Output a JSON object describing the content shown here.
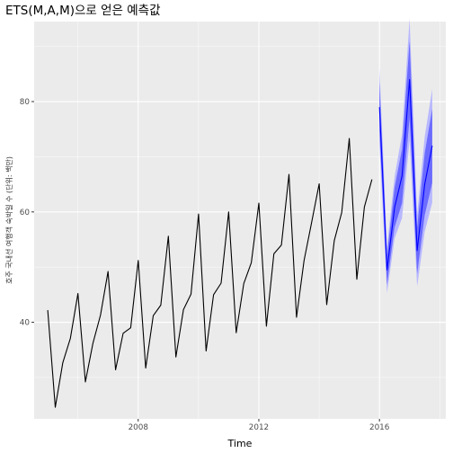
{
  "chart_data": {
    "type": "line",
    "title": "ETS(M,A,M)으로 얻은 예측값",
    "xlabel": "Time",
    "ylabel": "호주 국내선 여행객 숙박일 수 (단위: 백만)",
    "xlim": [
      2004.55,
      2018.2
    ],
    "ylim": [
      22.5,
      94.5
    ],
    "x_ticks": [
      2008,
      2012,
      2016
    ],
    "y_ticks": [
      40,
      60,
      80
    ],
    "grid": true,
    "background": "#ebebeb",
    "series": [
      {
        "role": "observed",
        "color": "#000000",
        "x": [
          2005.0,
          2005.25,
          2005.5,
          2005.75,
          2006.0,
          2006.25,
          2006.5,
          2006.75,
          2007.0,
          2007.25,
          2007.5,
          2007.75,
          2008.0,
          2008.25,
          2008.5,
          2008.75,
          2009.0,
          2009.25,
          2009.5,
          2009.75,
          2010.0,
          2010.25,
          2010.5,
          2010.75,
          2011.0,
          2011.25,
          2011.5,
          2011.75,
          2012.0,
          2012.25,
          2012.5,
          2012.75,
          2013.0,
          2013.25,
          2013.5,
          2013.75,
          2014.0,
          2014.25,
          2014.5,
          2014.75,
          2015.0,
          2015.25,
          2015.5,
          2015.75
        ],
        "y": [
          42.2,
          24.6,
          32.7,
          37.1,
          45.2,
          29.2,
          36.2,
          41.3,
          49.2,
          31.4,
          38.0,
          39.0,
          51.2,
          31.7,
          41.2,
          43.1,
          55.6,
          33.7,
          42.3,
          45.1,
          59.6,
          34.8,
          45.0,
          47.1,
          60.0,
          38.1,
          47.0,
          50.8,
          61.6,
          39.3,
          52.4,
          54.0,
          66.8,
          40.9,
          51.2,
          58.1,
          65.1,
          43.2,
          54.8,
          59.9,
          73.3,
          47.8,
          60.9,
          65.9
        ]
      },
      {
        "role": "forecast",
        "color": "#0000ff",
        "x": [
          2016.0,
          2016.25,
          2016.5,
          2016.75,
          2017.0,
          2017.25,
          2017.5,
          2017.75
        ],
        "y": [
          79.0,
          49.5,
          60.8,
          66.5,
          84.0,
          53.0,
          65.0,
          72.0
        ],
        "interval_80": {
          "color": "#6b6bff",
          "lower": [
            74.5,
            46.8,
            57.2,
            61.6,
            77.0,
            48.8,
            59.4,
            65.3
          ],
          "upper": [
            83.5,
            52.2,
            64.4,
            71.4,
            91.0,
            57.2,
            70.6,
            78.7
          ]
        },
        "interval_95": {
          "color": "#b8b8ff",
          "lower": [
            72.0,
            45.3,
            55.2,
            58.9,
            73.0,
            46.5,
            56.4,
            61.7
          ],
          "upper": [
            86.0,
            53.7,
            66.4,
            74.1,
            95.0,
            59.5,
            73.6,
            82.3
          ]
        }
      }
    ]
  }
}
